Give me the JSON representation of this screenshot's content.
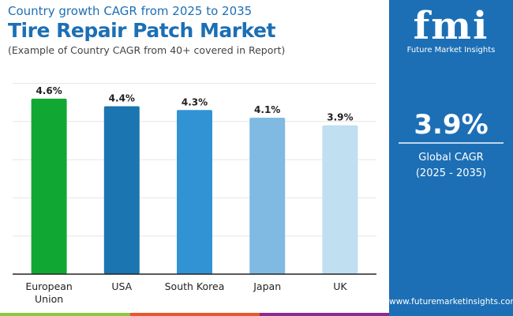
{
  "header": {
    "subtitle": "Country growth CAGR from 2025 to 2035",
    "title": "Tire Repair Patch Market",
    "note": "(Example of Country CAGR from 40+ covered in Report)"
  },
  "panel": {
    "logo": "fmi",
    "logo_sub": "Future Market Insights",
    "value": "3.9%",
    "label": "Global CAGR",
    "period": "(2025 - 2035)",
    "url": "www.futuremarketinsights.com"
  },
  "chart_data": {
    "type": "bar",
    "categories": [
      "European Union",
      "USA",
      "South Korea",
      "Japan",
      "UK"
    ],
    "category_lines": [
      [
        "European",
        "Union"
      ],
      [
        "USA"
      ],
      [
        "South Korea"
      ],
      [
        "Japan"
      ],
      [
        "UK"
      ]
    ],
    "values": [
      4.6,
      4.4,
      4.3,
      4.1,
      3.9
    ],
    "labels": [
      "4.6%",
      "4.4%",
      "4.3%",
      "4.1%",
      "3.9%"
    ],
    "colors": [
      "#10a832",
      "#1b75b0",
      "#3193d4",
      "#80bae2",
      "#c0dff1"
    ],
    "ylim": [
      0,
      5
    ],
    "grid": true,
    "xlabel": "",
    "ylabel": ""
  }
}
